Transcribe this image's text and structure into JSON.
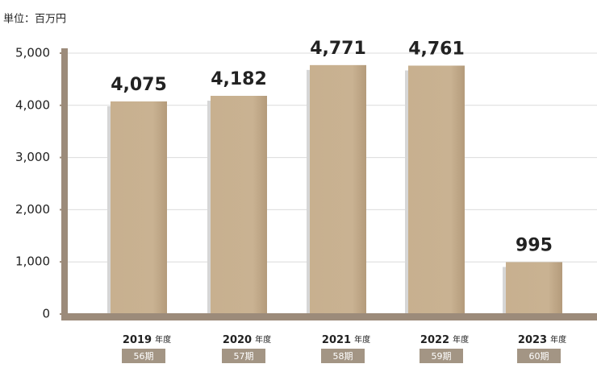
{
  "chart_data": {
    "type": "bar",
    "unit_label": "単位：百万円",
    "categories": [
      "2019",
      "2020",
      "2021",
      "2022",
      "2023"
    ],
    "category_suffix": "年度",
    "periods": [
      "56期",
      "57期",
      "58期",
      "59期",
      "60期"
    ],
    "values": [
      4075,
      4182,
      4771,
      4761,
      995
    ],
    "value_labels": [
      "4,075",
      "4,182",
      "4,771",
      "4,761",
      "995"
    ],
    "color": "#c8b08f",
    "axis_color": "#9c8b7a",
    "ylim": [
      0,
      5000
    ],
    "yticks": [
      0,
      {
        "value": 1000,
        "label": "1,000"
      },
      {
        "value": 2000,
        "label": "2,000"
      },
      {
        "value": 3000,
        "label": "3,000"
      },
      {
        "value": 4000,
        "label": "4,000"
      },
      {
        "value": 5000,
        "label": "5,000"
      }
    ],
    "grid": true
  }
}
